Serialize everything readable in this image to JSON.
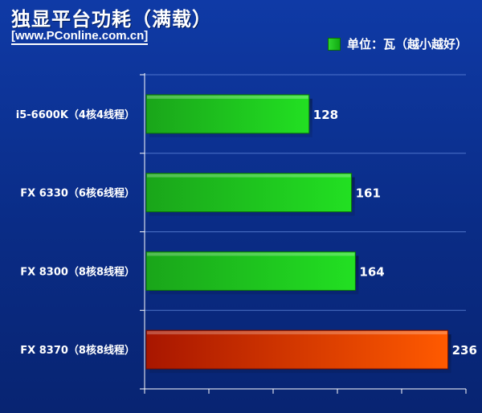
{
  "title": "独显平台功耗（满载）",
  "subtitle": "[www.PConline.com.cn]",
  "legend": {
    "label": "单位：瓦（越小越好）"
  },
  "colors": {
    "background": "#0b2f8f",
    "green_bar": "#1fc81f",
    "red_bar_start": "#b01800",
    "red_bar_end": "#ff5a00",
    "axis": "#ffffff"
  },
  "chart_data": {
    "type": "bar",
    "orientation": "horizontal",
    "title": "独显平台功耗（满载）",
    "unit": "瓦",
    "categories": [
      "i5-6600K（4核4线程）",
      "FX 6330（6核6线程）",
      "FX 8300（8核8线程）",
      "FX 8370（8核8线程）"
    ],
    "values": [
      128,
      161,
      164,
      236
    ],
    "bar_colors": [
      "green",
      "green",
      "green",
      "red"
    ],
    "xlim": [
      0,
      250
    ],
    "grid": true,
    "legend_position": "top-right"
  }
}
